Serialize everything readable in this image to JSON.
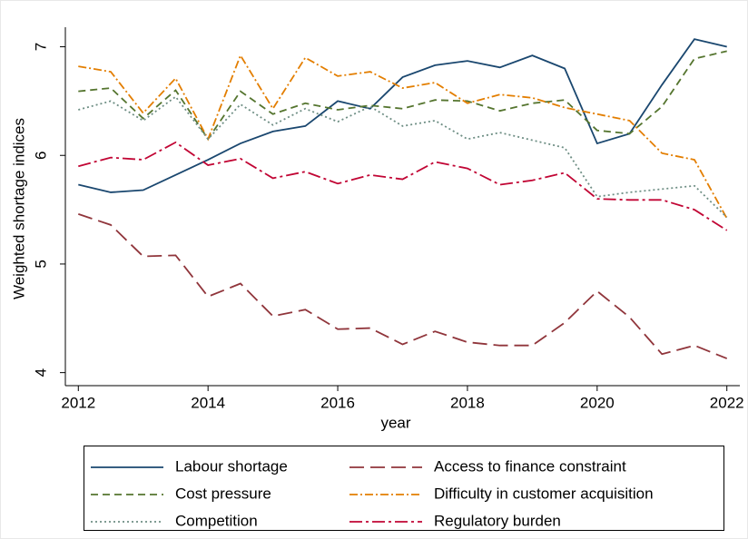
{
  "chart_data": {
    "type": "line",
    "y_label": "Weighted shortage indices",
    "x_label": "year",
    "x": [
      2012,
      2012.5,
      2013,
      2013.5,
      2014,
      2014.5,
      2015,
      2015.5,
      2016,
      2016.5,
      2017,
      2017.5,
      2018,
      2018.5,
      2019,
      2019.5,
      2020,
      2020.5,
      2021,
      2021.5,
      2022
    ],
    "xlim": [
      2011.8,
      2022.2
    ],
    "xticks": [
      2012,
      2014,
      2016,
      2018,
      2020,
      2022
    ],
    "ylim": [
      3.88,
      7.18
    ],
    "yticks": [
      4,
      5,
      6,
      7
    ],
    "grid": false,
    "legend": "bottom",
    "series": [
      {
        "name": "Labour shortage",
        "color": "#1a476f",
        "dash": "none",
        "values": [
          5.73,
          5.66,
          5.68,
          5.82,
          5.96,
          6.11,
          6.22,
          6.27,
          6.5,
          6.43,
          6.72,
          6.83,
          6.87,
          6.81,
          6.92,
          6.8,
          6.11,
          6.2,
          6.65,
          7.07,
          7.0
        ]
      },
      {
        "name": "Access to finance constraint",
        "color": "#90353b",
        "dash": "16 7",
        "values": [
          5.46,
          5.36,
          5.07,
          5.08,
          4.7,
          4.82,
          4.52,
          4.58,
          4.4,
          4.41,
          4.26,
          4.38,
          4.28,
          4.25,
          4.25,
          4.46,
          4.75,
          4.51,
          4.17,
          4.25,
          4.13
        ]
      },
      {
        "name": "Cost pressure",
        "color": "#55752f",
        "dash": "8 5",
        "values": [
          6.59,
          6.62,
          6.34,
          6.6,
          6.15,
          6.59,
          6.38,
          6.48,
          6.42,
          6.46,
          6.43,
          6.51,
          6.5,
          6.41,
          6.48,
          6.51,
          6.23,
          6.2,
          6.45,
          6.89,
          6.96
        ]
      },
      {
        "name": "Difficulty in customer acquisition",
        "color": "#e37e00",
        "dash": "9 3 2 3",
        "values": [
          6.82,
          6.77,
          6.39,
          6.71,
          6.15,
          6.92,
          6.43,
          6.9,
          6.73,
          6.77,
          6.62,
          6.67,
          6.48,
          6.56,
          6.53,
          6.44,
          6.38,
          6.32,
          6.02,
          5.96,
          5.42
        ]
      },
      {
        "name": "Competition",
        "color": "#6e8e84",
        "dash": "2 3",
        "values": [
          6.42,
          6.5,
          6.32,
          6.54,
          6.15,
          6.47,
          6.28,
          6.43,
          6.31,
          6.45,
          6.27,
          6.32,
          6.15,
          6.21,
          6.14,
          6.07,
          5.62,
          5.66,
          5.69,
          5.72,
          5.43
        ]
      },
      {
        "name": "Regulatory burden",
        "color": "#c10534",
        "dash": "14 4 3 4",
        "values": [
          5.9,
          5.98,
          5.96,
          6.12,
          5.91,
          5.97,
          5.79,
          5.85,
          5.74,
          5.82,
          5.78,
          5.94,
          5.88,
          5.73,
          5.77,
          5.84,
          5.6,
          5.59,
          5.59,
          5.5,
          5.31
        ]
      }
    ]
  }
}
